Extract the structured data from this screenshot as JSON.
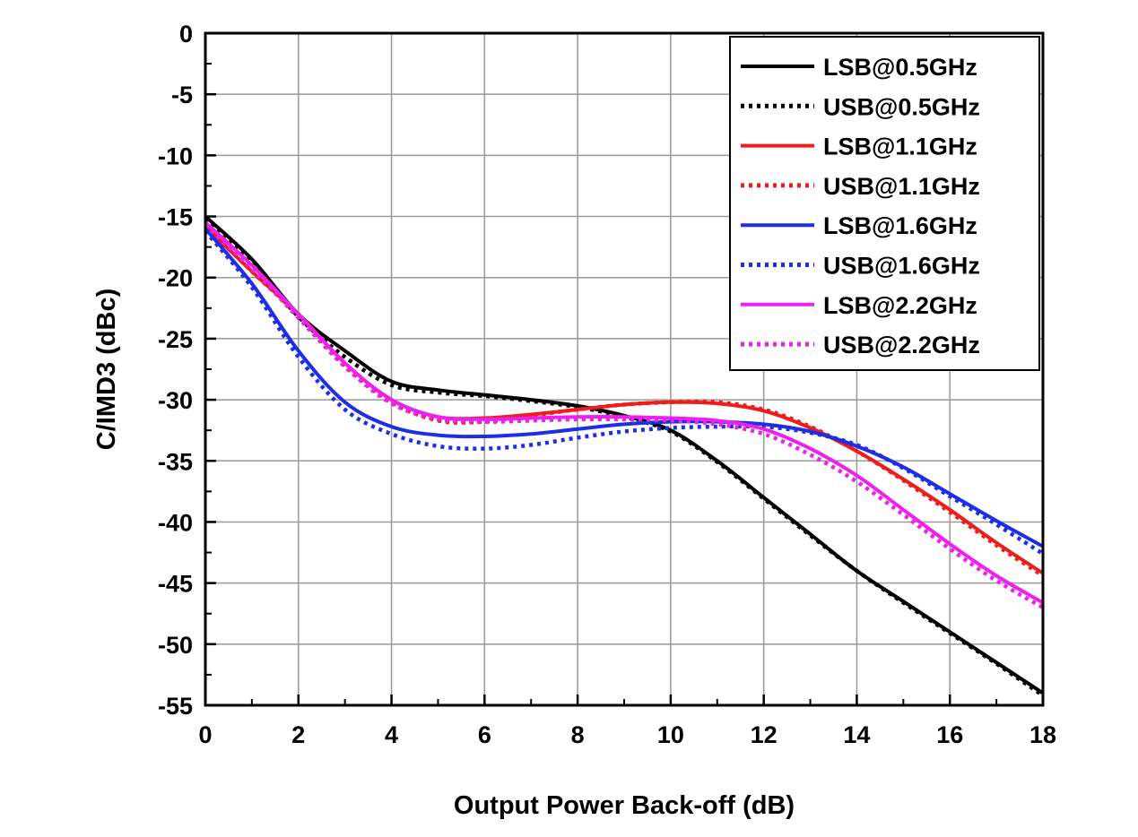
{
  "chart_data": {
    "type": "line",
    "title": "",
    "xlabel": "Output Power Back-off (dB)",
    "ylabel": "C/IMD3 (dBc)",
    "xlim": [
      0,
      18
    ],
    "ylim": [
      -55,
      0
    ],
    "x_ticks": [
      "0",
      "2",
      "4",
      "6",
      "8",
      "10",
      "12",
      "14",
      "16",
      "18"
    ],
    "y_ticks": [
      "0",
      "-5",
      "-10",
      "-15",
      "-20",
      "-25",
      "-30",
      "-35",
      "-40",
      "-45",
      "-50",
      "-55"
    ],
    "grid": true,
    "legend_position": "top-right",
    "series": [
      {
        "name": "LSB@0.5GHz",
        "color": "#000000",
        "style": "solid",
        "x": [
          0,
          1,
          2,
          3,
          4,
          5,
          6,
          7,
          8,
          9,
          10,
          11,
          12,
          13,
          14,
          15,
          16,
          17,
          18
        ],
        "y": [
          -15,
          -18.5,
          -23,
          -26,
          -28.5,
          -29.2,
          -29.6,
          -30,
          -30.5,
          -31.3,
          -32.5,
          -35,
          -38,
          -41,
          -44,
          -46.5,
          -49,
          -51.5,
          -54
        ]
      },
      {
        "name": "USB@0.5GHz",
        "color": "#000000",
        "style": "dotted",
        "x": [
          0,
          1,
          2,
          3,
          4,
          5,
          6,
          7,
          8,
          9,
          10,
          11,
          12,
          13,
          14,
          15,
          16,
          17,
          18
        ],
        "y": [
          -15.2,
          -18.8,
          -23.2,
          -26.5,
          -28.8,
          -29.4,
          -29.7,
          -30.1,
          -30.6,
          -31.4,
          -32.6,
          -35.1,
          -38.1,
          -41.1,
          -44,
          -46.6,
          -49.1,
          -51.6,
          -54.2
        ]
      },
      {
        "name": "LSB@1.1GHz",
        "color": "#ee1c1c",
        "style": "solid",
        "x": [
          0,
          1,
          2,
          3,
          4,
          5,
          6,
          7,
          8,
          9,
          10,
          11,
          12,
          13,
          14,
          15,
          16,
          17,
          18
        ],
        "y": [
          -15.8,
          -19.5,
          -23,
          -27,
          -30,
          -31.4,
          -31.5,
          -31.2,
          -30.8,
          -30.4,
          -30.2,
          -30.3,
          -30.9,
          -32.3,
          -34.2,
          -36.5,
          -39,
          -41.7,
          -44.2
        ]
      },
      {
        "name": "USB@1.1GHz",
        "color": "#ee1c1c",
        "style": "dotted",
        "x": [
          0,
          1,
          2,
          3,
          4,
          5,
          6,
          7,
          8,
          9,
          10,
          11,
          12,
          13,
          14,
          15,
          16,
          17,
          18
        ],
        "y": [
          -15.8,
          -19.5,
          -23.1,
          -27.2,
          -30.2,
          -31.7,
          -31.8,
          -31.3,
          -30.8,
          -30.4,
          -30.2,
          -30.2,
          -30.8,
          -32.2,
          -34.2,
          -36.6,
          -39.2,
          -41.9,
          -44.4
        ]
      },
      {
        "name": "LSB@1.6GHz",
        "color": "#1c2ee8",
        "style": "solid",
        "x": [
          0,
          1,
          2,
          3,
          4,
          5,
          6,
          7,
          8,
          9,
          10,
          11,
          12,
          13,
          14,
          15,
          16,
          17,
          18
        ],
        "y": [
          -16,
          -20.5,
          -26,
          -30.2,
          -32.2,
          -32.9,
          -33,
          -32.8,
          -32.4,
          -32,
          -31.8,
          -31.8,
          -32,
          -32.6,
          -33.8,
          -35.5,
          -37.7,
          -39.9,
          -42
        ]
      },
      {
        "name": "USB@1.6GHz",
        "color": "#1c2ee8",
        "style": "dotted",
        "x": [
          0,
          1,
          2,
          3,
          4,
          5,
          6,
          7,
          8,
          9,
          10,
          11,
          12,
          13,
          14,
          15,
          16,
          17,
          18
        ],
        "y": [
          -16.2,
          -20.8,
          -26.5,
          -30.8,
          -32.8,
          -33.8,
          -34,
          -33.7,
          -33.1,
          -32.6,
          -32.3,
          -32.2,
          -32.2,
          -32.7,
          -33.7,
          -35.6,
          -37.9,
          -40.2,
          -42.6
        ]
      },
      {
        "name": "LSB@2.2GHz",
        "color": "#ee20ee",
        "style": "solid",
        "x": [
          0,
          1,
          2,
          3,
          4,
          5,
          6,
          7,
          8,
          9,
          10,
          11,
          12,
          13,
          14,
          15,
          16,
          17,
          18
        ],
        "y": [
          -15.5,
          -19,
          -23,
          -27,
          -30,
          -31.4,
          -31.6,
          -31.5,
          -31.4,
          -31.4,
          -31.5,
          -31.7,
          -32.4,
          -34,
          -36.2,
          -39,
          -41.8,
          -44.4,
          -46.6
        ]
      },
      {
        "name": "USB@2.2GHz",
        "color": "#ee20ee",
        "style": "dotted",
        "x": [
          0,
          1,
          2,
          3,
          4,
          5,
          6,
          7,
          8,
          9,
          10,
          11,
          12,
          13,
          14,
          15,
          16,
          17,
          18
        ],
        "y": [
          -15.7,
          -19.3,
          -23.3,
          -27.3,
          -30.3,
          -31.6,
          -31.8,
          -31.7,
          -31.6,
          -31.6,
          -31.7,
          -32,
          -32.8,
          -34.5,
          -36.7,
          -39.4,
          -42.2,
          -44.8,
          -47
        ]
      }
    ]
  }
}
